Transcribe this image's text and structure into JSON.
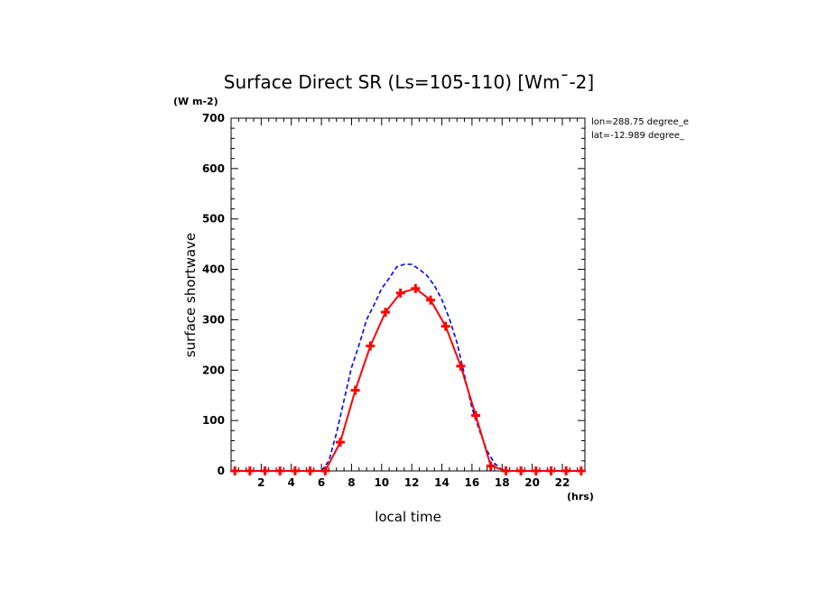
{
  "chart_data": {
    "type": "line",
    "title": "Surface Direct SR (Ls=105-110) [Wm¯-2]",
    "units": "(W m-2)",
    "xlabel": "local time",
    "xunits": "(hrs)",
    "ylabel": "surface shortwave",
    "xlim": [
      0,
      23.5
    ],
    "ylim": [
      0,
      700
    ],
    "xticks": [
      "2",
      "4",
      "6",
      "8",
      "10",
      "12",
      "14",
      "16",
      "18",
      "20",
      "22"
    ],
    "yticks": [
      "0",
      "100",
      "200",
      "300",
      "400",
      "500",
      "600",
      "700"
    ],
    "annotations": [
      "lon=288.75 degree_e",
      "lat=-12.989 degree_"
    ],
    "series": [
      {
        "color": "#ff0000",
        "style": "solid",
        "markers": true,
        "x": [
          0.25,
          1.25,
          2.25,
          3.25,
          4.25,
          5.25,
          6.25,
          7.25,
          8.25,
          9.25,
          10.25,
          11.25,
          12.25,
          13.25,
          14.25,
          15.25,
          16.25,
          17.25,
          18.25,
          19.25,
          20.25,
          21.25,
          22.25,
          23.25
        ],
        "values": [
          0,
          0,
          0,
          0,
          0,
          0,
          0,
          57,
          160,
          248,
          315,
          353,
          362,
          339,
          287,
          208,
          110,
          10,
          0,
          0,
          0,
          0,
          0,
          0
        ]
      },
      {
        "color": "#0000ff",
        "style": "dashed",
        "markers": false,
        "x": [
          0.25,
          1.25,
          2.25,
          3.25,
          4.25,
          5.25,
          6.0,
          6.5,
          7.0,
          7.5,
          8.0,
          8.5,
          9.0,
          9.5,
          10.0,
          10.5,
          11.0,
          11.5,
          12.0,
          12.5,
          13.0,
          13.5,
          14.0,
          14.5,
          15.0,
          15.5,
          16.0,
          16.5,
          17.0,
          17.5,
          18.0,
          18.5,
          19.25,
          20.25,
          21.25,
          22.25,
          23.25
        ],
        "values": [
          0,
          0,
          0,
          0,
          0,
          0,
          0,
          20,
          75,
          140,
          205,
          250,
          300,
          330,
          362,
          382,
          405,
          410,
          410,
          400,
          388,
          368,
          340,
          302,
          255,
          190,
          125,
          80,
          40,
          15,
          2,
          0,
          0,
          0,
          0,
          0,
          0
        ]
      }
    ]
  }
}
